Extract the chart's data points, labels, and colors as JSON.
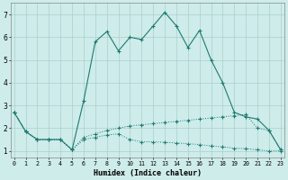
{
  "xlabel": "Humidex (Indice chaleur)",
  "x_ticks": [
    0,
    1,
    2,
    3,
    4,
    5,
    6,
    7,
    8,
    9,
    10,
    11,
    12,
    13,
    14,
    15,
    16,
    17,
    18,
    19,
    20,
    21,
    22,
    23
  ],
  "xlim": [
    -0.3,
    23.3
  ],
  "ylim": [
    0.7,
    7.5
  ],
  "y_ticks": [
    1,
    2,
    3,
    4,
    5,
    6,
    7
  ],
  "line_color": "#1e7a70",
  "bg_color": "#ceecea",
  "grid_color": "#aacfcc",
  "line_solid_x": [
    0,
    1,
    2,
    3,
    4,
    5,
    6,
    7,
    8,
    9,
    10,
    11,
    12,
    13,
    14,
    15,
    16,
    17,
    18,
    19,
    20,
    21,
    22,
    23
  ],
  "line_solid_y": [
    2.7,
    1.85,
    1.5,
    1.5,
    1.5,
    1.05,
    3.2,
    5.8,
    6.25,
    5.4,
    6.0,
    5.9,
    6.5,
    7.1,
    6.5,
    5.55,
    6.3,
    5.0,
    4.0,
    2.7,
    2.5,
    2.4,
    1.9,
    1.05
  ],
  "line_dotted_rise_x": [
    0,
    1,
    2,
    3,
    4,
    5,
    6,
    7,
    8,
    9,
    10,
    11,
    12,
    13,
    14,
    15,
    16,
    17,
    18,
    19,
    20,
    21,
    22,
    23
  ],
  "line_dotted_rise_y": [
    2.7,
    1.85,
    1.5,
    1.5,
    1.5,
    1.05,
    1.6,
    1.75,
    1.9,
    2.0,
    2.1,
    2.15,
    2.2,
    2.25,
    2.3,
    2.35,
    2.4,
    2.45,
    2.5,
    2.55,
    2.6,
    2.0,
    1.9,
    1.05
  ],
  "line_dotted_fall_x": [
    0,
    1,
    2,
    3,
    4,
    5,
    6,
    7,
    8,
    9,
    10,
    11,
    12,
    13,
    14,
    15,
    16,
    17,
    18,
    19,
    20,
    21,
    22,
    23
  ],
  "line_dotted_fall_y": [
    2.7,
    1.85,
    1.5,
    1.5,
    1.5,
    1.05,
    1.5,
    1.6,
    1.7,
    1.75,
    1.5,
    1.4,
    1.4,
    1.38,
    1.35,
    1.32,
    1.28,
    1.22,
    1.18,
    1.12,
    1.1,
    1.05,
    1.0,
    1.0
  ]
}
